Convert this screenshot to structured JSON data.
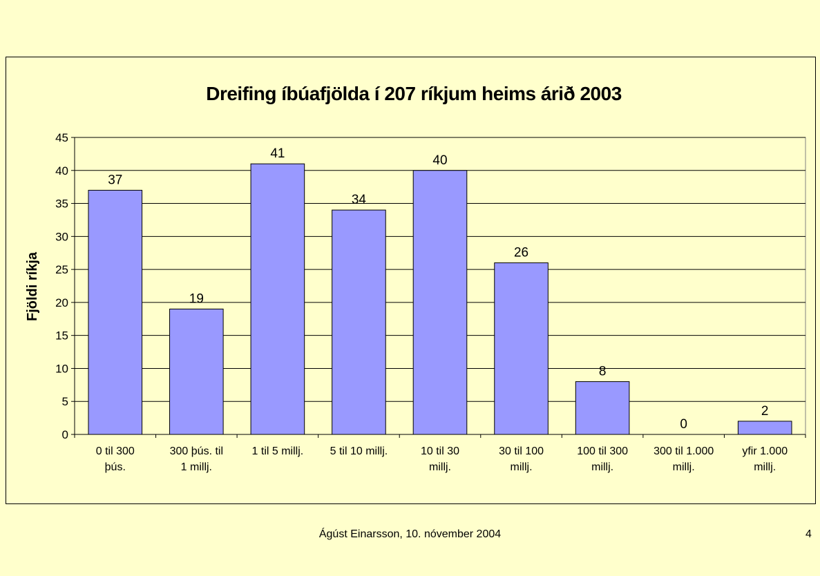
{
  "chart_data": {
    "type": "bar",
    "title": "Dreifing íbúafjölda í 207 ríkjum heims árið 2003",
    "xlabel": "",
    "ylabel": "Fjöldi ríkja",
    "ylim": [
      0,
      45
    ],
    "yticks": [
      0,
      5,
      10,
      15,
      20,
      25,
      30,
      35,
      40,
      45
    ],
    "grid": true,
    "legend": "none",
    "bar_color": "#9999ff",
    "categories": [
      [
        "0 til 300",
        "þús."
      ],
      [
        "300 þús. til",
        "1 millj."
      ],
      [
        "1 til 5 millj."
      ],
      [
        "5 til 10 millj."
      ],
      [
        "10 til 30",
        "millj."
      ],
      [
        "30 til 100",
        "millj."
      ],
      [
        "100 til 300",
        "millj."
      ],
      [
        "300 til 1.000",
        "millj."
      ],
      [
        "yfir 1.000",
        "millj."
      ]
    ],
    "values": [
      37,
      19,
      41,
      34,
      40,
      26,
      8,
      0,
      2
    ]
  },
  "footer": {
    "author_date": "Ágúst Einarsson, 10. nóvember 2004",
    "page_number": "4"
  }
}
